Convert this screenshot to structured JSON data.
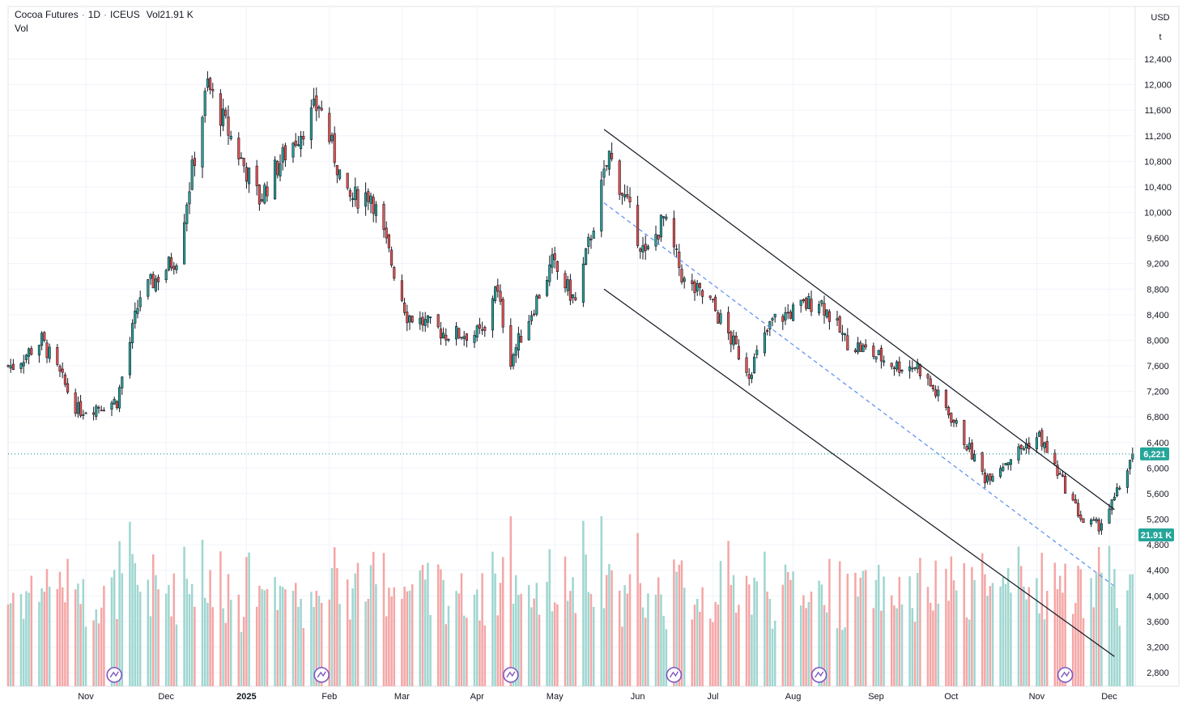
{
  "legend": {
    "symbol": "Cocoa Futures",
    "interval": "1D",
    "exchange": "ICEUS",
    "vol_label": "Vol",
    "vol_value": "21.91 K",
    "vol_indicator": "Vol"
  },
  "axis": {
    "currency": "USD",
    "unit": "t"
  },
  "last_price_label": "6,221",
  "last_volume_label": "21.91 K",
  "colors": {
    "up": "#26a69a",
    "down": "#ef5350",
    "up_volume": "#9fd6d0",
    "down_volume": "#f5a6a6",
    "channel_line": "#131722",
    "dashed_line": "#5b8def",
    "grid": "#f0f3fa",
    "last_price_line": "#26a69a"
  },
  "icons": [
    "earnings-icon"
  ],
  "chart_data": {
    "type": "candlestick",
    "y_range": [
      2600,
      12900
    ],
    "y_ticks": [
      2800,
      3200,
      3600,
      4000,
      4400,
      4800,
      5200,
      5600,
      6000,
      6400,
      6800,
      7200,
      7600,
      8000,
      8400,
      8800,
      9200,
      9600,
      10000,
      10400,
      10800,
      11200,
      11600,
      12000,
      12400
    ],
    "y_tick_labels": [
      "2,800",
      "3,200",
      "3,600",
      "4,000",
      "4,400",
      "4,800",
      "5,200",
      "5,600",
      "6,000",
      "6,400",
      "6,800",
      "7,200",
      "7,600",
      "8,000",
      "8,400",
      "8,800",
      "9,200",
      "9,600",
      "10,000",
      "10,400",
      "10,800",
      "11,200",
      "11,600",
      "12,000",
      "12,400"
    ],
    "x_labels": [
      "Nov",
      "Dec",
      "2025",
      "Feb",
      "Mar",
      "Apr",
      "May",
      "Jun",
      "Jul",
      "Aug",
      "Sep",
      "Oct",
      "Nov",
      "Dec"
    ],
    "x_label_dates": [
      "2024-11-01",
      "2024-12-02",
      "2025-01-02",
      "2025-02-03",
      "2025-03-03",
      "2025-04-01",
      "2025-05-01",
      "2025-06-02",
      "2025-07-01",
      "2025-08-01",
      "2025-09-02",
      "2025-10-01",
      "2025-11-03",
      "2025-12-01"
    ],
    "x_date_range": [
      "2024-10-02",
      "2025-12-11"
    ],
    "last_price": 6221,
    "key_closes": [
      {
        "date": "2024-10-04",
        "close": 7600
      },
      {
        "date": "2024-10-15",
        "close": 8000
      },
      {
        "date": "2024-10-29",
        "close": 6900
      },
      {
        "date": "2024-11-13",
        "close": 7050
      },
      {
        "date": "2024-11-22",
        "close": 8700
      },
      {
        "date": "2024-12-06",
        "close": 9300
      },
      {
        "date": "2024-12-18",
        "close": 12000
      },
      {
        "date": "2024-12-20",
        "close": 11800
      },
      {
        "date": "2025-01-07",
        "close": 10200
      },
      {
        "date": "2025-01-15",
        "close": 10800
      },
      {
        "date": "2025-01-30",
        "close": 11700
      },
      {
        "date": "2025-02-10",
        "close": 10200
      },
      {
        "date": "2025-02-19",
        "close": 10300
      },
      {
        "date": "2025-03-05",
        "close": 8400
      },
      {
        "date": "2025-03-20",
        "close": 8100
      },
      {
        "date": "2025-04-04",
        "close": 8100
      },
      {
        "date": "2025-04-08",
        "close": 8900
      },
      {
        "date": "2025-04-14",
        "close": 7700
      },
      {
        "date": "2025-04-30",
        "close": 9200
      },
      {
        "date": "2025-05-09",
        "close": 8600
      },
      {
        "date": "2025-05-22",
        "close": 10900
      },
      {
        "date": "2025-06-05",
        "close": 9300
      },
      {
        "date": "2025-06-12",
        "close": 9900
      },
      {
        "date": "2025-06-20",
        "close": 8900
      },
      {
        "date": "2025-06-30",
        "close": 8600
      },
      {
        "date": "2025-07-15",
        "close": 7500
      },
      {
        "date": "2025-07-24",
        "close": 8300
      },
      {
        "date": "2025-08-11",
        "close": 8650
      },
      {
        "date": "2025-08-21",
        "close": 8000
      },
      {
        "date": "2025-09-10",
        "close": 7600
      },
      {
        "date": "2025-09-18",
        "close": 7600
      },
      {
        "date": "2025-10-01",
        "close": 6800
      },
      {
        "date": "2025-10-14",
        "close": 5850
      },
      {
        "date": "2025-10-28",
        "close": 6300
      },
      {
        "date": "2025-11-04",
        "close": 6500
      },
      {
        "date": "2025-11-07",
        "close": 6250
      },
      {
        "date": "2025-11-21",
        "close": 5150
      },
      {
        "date": "2025-11-27",
        "close": 5100
      },
      {
        "date": "2025-12-03",
        "close": 5500
      },
      {
        "date": "2025-12-10",
        "close": 6221
      }
    ],
    "channel_upper": [
      {
        "date": "2025-05-20",
        "price": 11300
      },
      {
        "date": "2025-12-03",
        "price": 5350
      }
    ],
    "channel_lower": [
      {
        "date": "2025-05-20",
        "price": 8800
      },
      {
        "date": "2025-12-03",
        "price": 3050
      }
    ],
    "channel_mid": [
      {
        "date": "2025-05-20",
        "price": 10150
      },
      {
        "date": "2025-12-03",
        "price": 4150
      }
    ],
    "volume_last": 21910,
    "earnings_markers": [
      "2024-11-12",
      "2025-01-31",
      "2025-04-14",
      "2025-06-16",
      "2025-08-11",
      "2025-11-14"
    ]
  }
}
